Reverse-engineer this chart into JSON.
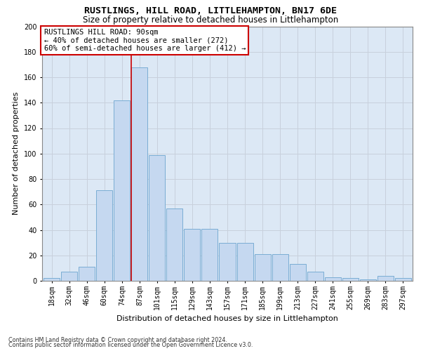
{
  "title": "RUSTLINGS, HILL ROAD, LITTLEHAMPTON, BN17 6DE",
  "subtitle": "Size of property relative to detached houses in Littlehampton",
  "xlabel": "Distribution of detached houses by size in Littlehampton",
  "ylabel": "Number of detached properties",
  "footnote1": "Contains HM Land Registry data © Crown copyright and database right 2024.",
  "footnote2": "Contains public sector information licensed under the Open Government Licence v3.0.",
  "categories": [
    "18sqm",
    "32sqm",
    "46sqm",
    "60sqm",
    "74sqm",
    "87sqm",
    "101sqm",
    "115sqm",
    "129sqm",
    "143sqm",
    "157sqm",
    "171sqm",
    "185sqm",
    "199sqm",
    "213sqm",
    "227sqm",
    "241sqm",
    "255sqm",
    "269sqm",
    "283sqm",
    "297sqm"
  ],
  "values": [
    2,
    7,
    11,
    71,
    142,
    168,
    99,
    57,
    41,
    41,
    30,
    30,
    21,
    21,
    13,
    7,
    3,
    2,
    1,
    4,
    2
  ],
  "bar_color": "#c5d8f0",
  "bar_edge_color": "#7aadd4",
  "vline_index": 5,
  "annotation_title": "RUSTLINGS HILL ROAD: 90sqm",
  "annotation_line1": "← 40% of detached houses are smaller (272)",
  "annotation_line2": "60% of semi-detached houses are larger (412) →",
  "annotation_box_facecolor": "#ffffff",
  "annotation_box_edgecolor": "#cc0000",
  "vline_color": "#cc0000",
  "ylim_max": 200,
  "yticks": [
    0,
    20,
    40,
    60,
    80,
    100,
    120,
    140,
    160,
    180,
    200
  ],
  "grid_color": "#c8d0dc",
  "background_color": "#dce8f5",
  "title_fontsize": 9.5,
  "subtitle_fontsize": 8.5,
  "xlabel_fontsize": 8,
  "ylabel_fontsize": 8,
  "tick_fontsize": 7,
  "annotation_fontsize": 7.5,
  "footnote_fontsize": 5.8
}
